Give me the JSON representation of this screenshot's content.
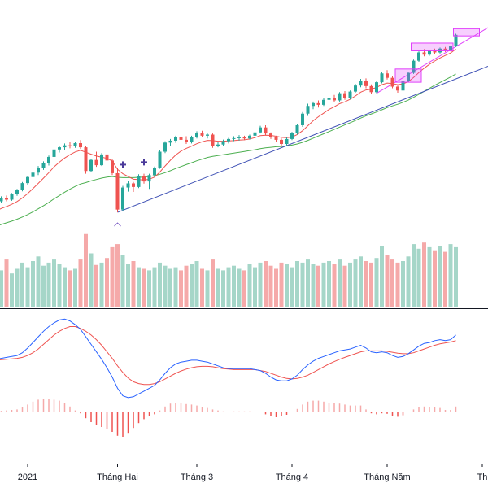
{
  "chart_data": {
    "type": "candlestick",
    "x_tick_labels": [
      "2021",
      "Tháng Hai",
      "Tháng 3",
      "Tháng 4",
      "Tháng Năm",
      "Th"
    ],
    "colors": {
      "up_candle": "#26a69a",
      "down_candle": "#ef5350",
      "volume_up": "#a5d6c8",
      "volume_down": "#f5a9a9",
      "ma_fast": "#ef5350",
      "ma_slow": "#4caf50",
      "trendline": "#3f51b5",
      "macd_line": "#2962ff",
      "signal_line": "#ef5350",
      "histogram_pos": "#f5a9a9",
      "histogram_neg": "#ef5350",
      "highlight_box": "#e040fb",
      "dotted_level": "#26a69a",
      "axis_line": "#131722"
    },
    "panels": [
      "price",
      "volume",
      "macd"
    ],
    "grid": false,
    "ohlc": [
      [
        100.0,
        101.5,
        99.2,
        101.0
      ],
      [
        101.0,
        102.8,
        100.4,
        102.3
      ],
      [
        102.3,
        103.1,
        101.0,
        101.6
      ],
      [
        101.6,
        104.0,
        101.2,
        103.7
      ],
      [
        103.7,
        105.5,
        103.0,
        105.0
      ],
      [
        105.0,
        108.0,
        104.6,
        107.6
      ],
      [
        107.6,
        110.2,
        107.0,
        109.8
      ],
      [
        109.8,
        112.0,
        108.6,
        111.4
      ],
      [
        111.4,
        113.8,
        110.5,
        113.2
      ],
      [
        113.2,
        115.5,
        112.4,
        114.8
      ],
      [
        114.8,
        117.6,
        114.0,
        117.1
      ],
      [
        117.1,
        120.5,
        116.2,
        119.8
      ],
      [
        119.8,
        121.2,
        118.7,
        120.6
      ],
      [
        120.6,
        122.0,
        119.6,
        121.3
      ],
      [
        121.3,
        122.4,
        120.2,
        121.0
      ],
      [
        121.0,
        122.6,
        120.4,
        122.1
      ],
      [
        122.1,
        123.2,
        120.0,
        120.6
      ],
      [
        120.6,
        121.0,
        111.0,
        112.0
      ],
      [
        112.0,
        116.5,
        111.6,
        116.0
      ],
      [
        116.0,
        119.0,
        113.5,
        114.1
      ],
      [
        114.1,
        118.5,
        113.8,
        118.0
      ],
      [
        118.0,
        119.0,
        115.2,
        115.8
      ],
      [
        115.8,
        116.4,
        110.5,
        111.2
      ],
      [
        111.2,
        113.0,
        97.0,
        98.0
      ],
      [
        98.0,
        106.6,
        97.4,
        106.0
      ],
      [
        106.0,
        108.5,
        104.5,
        107.5
      ],
      [
        107.5,
        108.0,
        104.4,
        106.2
      ],
      [
        106.2,
        110.8,
        105.8,
        110.3
      ],
      [
        110.3,
        111.0,
        107.4,
        108.2
      ],
      [
        108.2,
        111.0,
        105.5,
        110.5
      ],
      [
        110.5,
        113.6,
        109.8,
        113.2
      ],
      [
        113.2,
        119.5,
        112.8,
        119.0
      ],
      [
        119.0,
        122.8,
        118.5,
        122.3
      ],
      [
        122.3,
        123.6,
        121.2,
        123.0
      ],
      [
        123.0,
        124.8,
        122.2,
        124.2
      ],
      [
        124.2,
        125.0,
        122.6,
        123.3
      ],
      [
        123.3,
        124.6,
        121.8,
        122.4
      ],
      [
        122.4,
        124.8,
        122.0,
        124.3
      ],
      [
        124.3,
        126.4,
        123.8,
        125.9
      ],
      [
        125.9,
        126.6,
        124.2,
        124.8
      ],
      [
        124.8,
        125.6,
        123.8,
        125.2
      ],
      [
        125.2,
        125.6,
        120.4,
        121.2
      ],
      [
        121.2,
        122.4,
        120.6,
        121.6
      ],
      [
        121.6,
        123.4,
        121.0,
        122.8
      ],
      [
        122.8,
        124.0,
        122.0,
        123.6
      ],
      [
        123.6,
        124.6,
        122.8,
        123.9
      ],
      [
        123.9,
        125.0,
        123.0,
        124.4
      ],
      [
        124.4,
        124.8,
        123.2,
        123.8
      ],
      [
        123.8,
        125.2,
        123.4,
        124.8
      ],
      [
        124.8,
        126.4,
        124.2,
        126.0
      ],
      [
        126.0,
        128.4,
        125.6,
        127.8
      ],
      [
        127.8,
        128.6,
        125.0,
        125.6
      ],
      [
        125.6,
        126.0,
        123.6,
        124.2
      ],
      [
        124.2,
        124.8,
        122.6,
        123.3
      ],
      [
        123.3,
        123.8,
        121.0,
        121.8
      ],
      [
        121.8,
        124.2,
        121.2,
        123.6
      ],
      [
        123.6,
        126.2,
        123.2,
        125.8
      ],
      [
        125.8,
        129.0,
        125.2,
        128.6
      ],
      [
        128.6,
        133.4,
        128.0,
        132.8
      ],
      [
        132.8,
        136.4,
        132.0,
        135.6
      ],
      [
        135.6,
        137.2,
        134.4,
        136.6
      ],
      [
        136.6,
        137.6,
        135.0,
        136.0
      ],
      [
        136.0,
        138.4,
        135.6,
        137.8
      ],
      [
        137.8,
        139.0,
        136.8,
        138.4
      ],
      [
        138.4,
        139.6,
        137.0,
        137.6
      ],
      [
        137.6,
        140.6,
        137.2,
        140.2
      ],
      [
        140.2,
        141.0,
        137.8,
        138.4
      ],
      [
        138.4,
        141.2,
        138.0,
        140.8
      ],
      [
        140.8,
        143.6,
        140.4,
        143.0
      ],
      [
        143.0,
        145.4,
        142.4,
        144.8
      ],
      [
        144.8,
        145.6,
        142.0,
        142.8
      ],
      [
        142.8,
        143.4,
        140.0,
        140.6
      ],
      [
        140.6,
        144.6,
        140.2,
        144.2
      ],
      [
        144.2,
        147.8,
        143.8,
        147.4
      ],
      [
        147.4,
        148.6,
        145.2,
        145.8
      ],
      [
        145.8,
        146.4,
        142.0,
        142.6
      ],
      [
        142.6,
        143.0,
        140.4,
        141.2
      ],
      [
        141.2,
        145.0,
        140.8,
        144.6
      ],
      [
        144.6,
        148.0,
        144.2,
        147.6
      ],
      [
        147.6,
        152.4,
        147.2,
        152.0
      ],
      [
        152.0,
        155.4,
        151.6,
        155.0
      ],
      [
        155.0,
        156.2,
        153.6,
        154.2
      ],
      [
        154.2,
        156.0,
        153.8,
        155.6
      ],
      [
        155.6,
        156.4,
        154.4,
        155.0
      ],
      [
        155.0,
        156.8,
        154.6,
        156.4
      ],
      [
        156.4,
        157.0,
        155.2,
        155.8
      ],
      [
        155.8,
        157.4,
        155.4,
        157.2
      ],
      [
        157.2,
        161.8,
        157.0,
        161.4
      ]
    ],
    "volume": [
      55,
      48,
      62,
      44,
      50,
      58,
      52,
      60,
      66,
      54,
      58,
      62,
      56,
      52,
      48,
      50,
      62,
      95,
      70,
      55,
      58,
      64,
      78,
      82,
      68,
      56,
      60,
      52,
      50,
      48,
      52,
      58,
      54,
      50,
      52,
      48,
      54,
      56,
      60,
      50,
      48,
      62,
      50,
      48,
      52,
      54,
      50,
      48,
      56,
      52,
      58,
      60,
      54,
      50,
      58,
      56,
      52,
      60,
      58,
      62,
      56,
      54,
      58,
      60,
      56,
      62,
      54,
      58,
      62,
      66,
      60,
      58,
      64,
      80,
      68,
      62,
      58,
      60,
      66,
      82,
      76,
      84,
      78,
      74,
      80,
      72,
      82,
      78
    ],
    "ma_fast": [
      97.5,
      98.4,
      99.1,
      99.9,
      100.9,
      102.2,
      103.8,
      105.6,
      107.5,
      109.4,
      111.4,
      113.5,
      115.2,
      116.7,
      117.9,
      118.9,
      119.5,
      118.8,
      118.1,
      117.4,
      117.0,
      116.6,
      115.6,
      112.6,
      111.0,
      110.0,
      109.0,
      108.9,
      108.7,
      109.0,
      109.8,
      111.6,
      113.8,
      115.9,
      117.8,
      119.2,
      120.2,
      121.0,
      121.9,
      122.6,
      123.1,
      123.0,
      122.8,
      122.8,
      122.9,
      123.0,
      123.2,
      123.3,
      123.6,
      124.1,
      124.8,
      125.0,
      124.9,
      124.6,
      124.2,
      124.1,
      124.3,
      125.2,
      126.6,
      128.4,
      130.2,
      131.7,
      133.0,
      134.3,
      135.3,
      136.4,
      137.1,
      138.0,
      139.2,
      140.6,
      141.4,
      141.7,
      142.3,
      143.3,
      143.9,
      143.7,
      143.3,
      143.6,
      144.4,
      145.9,
      147.7,
      149.3,
      150.7,
      151.9,
      153.0,
      153.9,
      154.8,
      156.2
    ],
    "ma_slow": [
      92.0,
      92.6,
      93.2,
      93.8,
      94.5,
      95.3,
      96.2,
      97.2,
      98.3,
      99.4,
      100.6,
      101.9,
      103.1,
      104.3,
      105.4,
      106.4,
      107.3,
      107.8,
      108.4,
      108.9,
      109.4,
      109.8,
      110.0,
      109.7,
      109.6,
      109.6,
      109.6,
      109.7,
      109.8,
      110.0,
      110.3,
      110.8,
      111.4,
      112.1,
      112.9,
      113.6,
      114.3,
      115.0,
      115.7,
      116.3,
      116.9,
      117.3,
      117.6,
      117.9,
      118.2,
      118.5,
      118.8,
      119.1,
      119.4,
      119.7,
      120.1,
      120.4,
      120.6,
      120.8,
      120.9,
      121.1,
      121.4,
      121.8,
      122.4,
      123.1,
      123.9,
      124.7,
      125.5,
      126.3,
      127.1,
      127.9,
      128.7,
      129.5,
      130.3,
      131.2,
      132.0,
      132.7,
      133.4,
      134.2,
      135.0,
      135.6,
      136.2,
      136.9,
      137.7,
      138.7,
      139.8,
      140.9,
      142.0,
      143.1,
      144.1,
      145.1,
      146.1,
      147.2
    ],
    "macd": [
      0.1,
      0.12,
      0.14,
      0.16,
      0.18,
      0.24,
      0.34,
      0.46,
      0.58,
      0.7,
      0.8,
      0.88,
      0.94,
      0.96,
      0.92,
      0.84,
      0.74,
      0.58,
      0.42,
      0.26,
      0.1,
      -0.08,
      -0.28,
      -0.52,
      -0.68,
      -0.72,
      -0.7,
      -0.64,
      -0.58,
      -0.52,
      -0.46,
      -0.34,
      -0.2,
      -0.08,
      0.0,
      0.04,
      0.06,
      0.08,
      0.08,
      0.06,
      0.04,
      0.0,
      -0.04,
      -0.08,
      -0.1,
      -0.1,
      -0.1,
      -0.1,
      -0.1,
      -0.12,
      -0.14,
      -0.2,
      -0.28,
      -0.34,
      -0.36,
      -0.36,
      -0.32,
      -0.24,
      -0.12,
      -0.02,
      0.06,
      0.12,
      0.16,
      0.2,
      0.24,
      0.28,
      0.3,
      0.32,
      0.36,
      0.4,
      0.34,
      0.26,
      0.24,
      0.26,
      0.24,
      0.18,
      0.14,
      0.16,
      0.22,
      0.3,
      0.38,
      0.44,
      0.46,
      0.5,
      0.52,
      0.5,
      0.52,
      0.62
    ],
    "signal": [
      0.08,
      0.09,
      0.1,
      0.11,
      0.12,
      0.14,
      0.18,
      0.24,
      0.32,
      0.42,
      0.52,
      0.62,
      0.7,
      0.76,
      0.8,
      0.8,
      0.76,
      0.7,
      0.62,
      0.52,
      0.4,
      0.26,
      0.12,
      -0.04,
      -0.18,
      -0.3,
      -0.38,
      -0.42,
      -0.44,
      -0.44,
      -0.42,
      -0.38,
      -0.32,
      -0.26,
      -0.2,
      -0.15,
      -0.11,
      -0.08,
      -0.06,
      -0.05,
      -0.05,
      -0.06,
      -0.08,
      -0.1,
      -0.11,
      -0.12,
      -0.12,
      -0.12,
      -0.12,
      -0.12,
      -0.14,
      -0.16,
      -0.2,
      -0.24,
      -0.28,
      -0.31,
      -0.32,
      -0.31,
      -0.28,
      -0.24,
      -0.18,
      -0.12,
      -0.06,
      0.0,
      0.05,
      0.1,
      0.14,
      0.18,
      0.22,
      0.26,
      0.28,
      0.28,
      0.28,
      0.28,
      0.27,
      0.25,
      0.23,
      0.22,
      0.22,
      0.24,
      0.28,
      0.32,
      0.36,
      0.4,
      0.43,
      0.45,
      0.47,
      0.5
    ]
  }
}
